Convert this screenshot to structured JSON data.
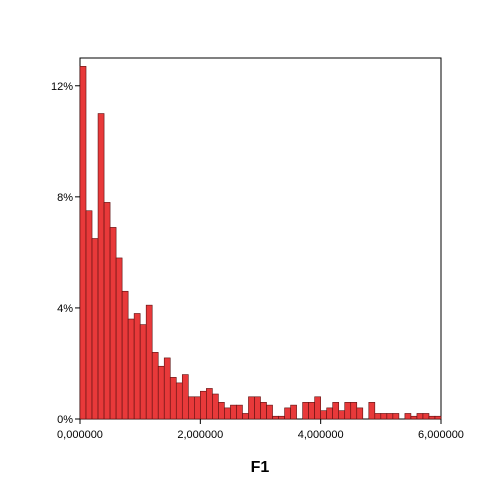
{
  "chart_data": {
    "type": "bar",
    "title": "",
    "xlabel": "F1",
    "ylabel": "",
    "xlim": [
      0,
      6
    ],
    "ylim": [
      0,
      13
    ],
    "grid": false,
    "bar_color": "#e8393a",
    "bar_edge_color": "#5a1010",
    "bin_width": 0.1,
    "x_ticks": [
      {
        "value": 0,
        "label": "0,000000"
      },
      {
        "value": 2,
        "label": "2,000000"
      },
      {
        "value": 4,
        "label": "4,000000"
      },
      {
        "value": 6,
        "label": "6,000000"
      }
    ],
    "y_ticks": [
      {
        "value": 0,
        "label": "0%"
      },
      {
        "value": 4,
        "label": "4%"
      },
      {
        "value": 8,
        "label": "8%"
      },
      {
        "value": 12,
        "label": "12%"
      }
    ],
    "bins_start": [
      0.0,
      0.1,
      0.2,
      0.3,
      0.4,
      0.5,
      0.6,
      0.7,
      0.8,
      0.9,
      1.0,
      1.1,
      1.2,
      1.3,
      1.4,
      1.5,
      1.6,
      1.7,
      1.8,
      1.9,
      2.0,
      2.1,
      2.2,
      2.3,
      2.4,
      2.5,
      2.6,
      2.7,
      2.8,
      2.9,
      3.0,
      3.1,
      3.2,
      3.3,
      3.4,
      3.5,
      3.6,
      3.7,
      3.8,
      3.9,
      4.0,
      4.1,
      4.2,
      4.3,
      4.4,
      4.5,
      4.6,
      4.7,
      4.8,
      4.9,
      5.0,
      5.1,
      5.2,
      5.3,
      5.4,
      5.5,
      5.6,
      5.7,
      5.8,
      5.9
    ],
    "values": [
      12.7,
      7.5,
      6.5,
      11.0,
      7.8,
      6.9,
      5.8,
      4.6,
      3.6,
      3.8,
      3.4,
      4.1,
      2.4,
      1.9,
      2.2,
      1.5,
      1.3,
      1.6,
      0.8,
      0.8,
      1.0,
      1.1,
      0.9,
      0.6,
      0.4,
      0.5,
      0.5,
      0.2,
      0.8,
      0.8,
      0.6,
      0.5,
      0.1,
      0.1,
      0.4,
      0.5,
      0.0,
      0.6,
      0.6,
      0.8,
      0.3,
      0.4,
      0.6,
      0.3,
      0.6,
      0.6,
      0.4,
      0.0,
      0.6,
      0.2,
      0.2,
      0.2,
      0.2,
      0.0,
      0.2,
      0.1,
      0.2,
      0.2,
      0.1,
      0.1
    ]
  }
}
